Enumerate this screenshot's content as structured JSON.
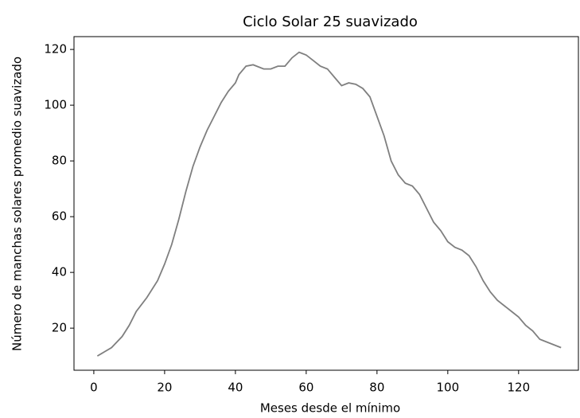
{
  "chart_data": {
    "type": "line",
    "title": "Ciclo Solar 25 suavizado",
    "x_label": "Meses desde el mínimo",
    "y_label": "Número de manchas solares promedio suavizado",
    "x": [
      1,
      3,
      5,
      8,
      10,
      12,
      15,
      18,
      20,
      22,
      24,
      26,
      28,
      30,
      32,
      34,
      36,
      38,
      40,
      41,
      43,
      45,
      48,
      50,
      52,
      54,
      56,
      58,
      60,
      62,
      64,
      66,
      68,
      70,
      72,
      74,
      76,
      78,
      80,
      82,
      84,
      86,
      88,
      90,
      92,
      94,
      96,
      98,
      100,
      102,
      104,
      106,
      108,
      110,
      112,
      114,
      116,
      118,
      120,
      122,
      124,
      126,
      128,
      130,
      132
    ],
    "series": [
      {
        "name": "Ciclo Solar 25",
        "color": "#7f7f7f",
        "values": [
          10,
          11.5,
          13,
          17,
          21,
          26,
          31,
          37,
          43,
          50,
          59,
          69,
          78,
          85,
          91,
          96,
          101,
          105,
          108,
          111,
          114,
          114.5,
          113,
          113,
          114,
          114,
          117,
          119,
          118,
          116,
          114,
          113,
          110,
          107,
          108,
          107.5,
          106,
          103,
          96,
          89,
          80,
          75,
          72,
          71,
          68,
          63,
          58,
          55,
          51,
          49,
          48,
          46,
          42,
          37,
          33,
          30,
          28,
          26,
          24,
          21,
          19,
          16,
          15,
          14,
          13
        ]
      }
    ],
    "xlim": [
      -5.6,
      136.9
    ],
    "ylim": [
      4.9,
      124.6
    ],
    "xticks": [
      0,
      20,
      40,
      60,
      80,
      100,
      120
    ],
    "yticks": [
      20,
      40,
      60,
      80,
      100,
      120
    ]
  }
}
